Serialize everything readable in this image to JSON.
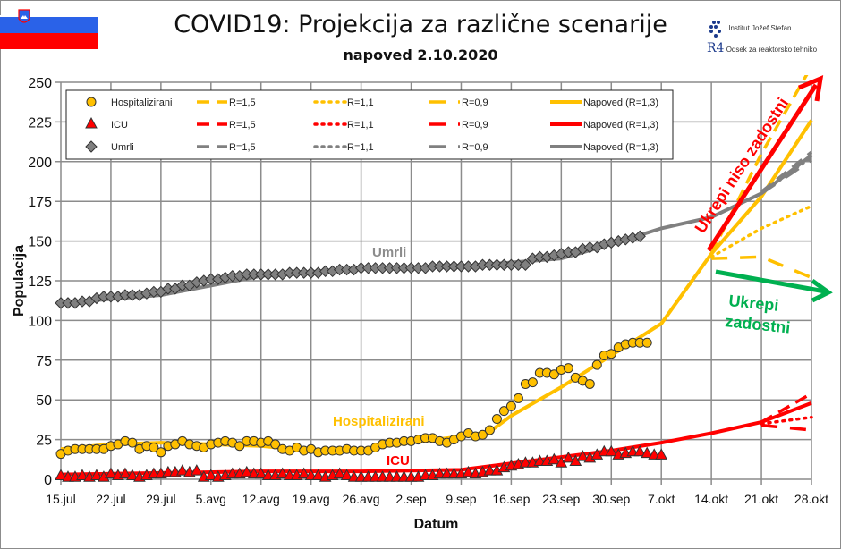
{
  "header": {
    "title": "COVID19: Projekcija za različne scenarije",
    "subtitle": "napoved 2.10.2020",
    "logo_institute": "Institut Jožef Stefan",
    "logo_department": "Odsek za reaktorsko tehniko",
    "logo_department_mark": "R4"
  },
  "annotations": {
    "umrli": "Umrli",
    "hospitalizirani": "Hospitalizirani",
    "icu": "ICU",
    "not_sufficient": "Ukrepi niso zadostni",
    "sufficient_line1": "Ukrepi",
    "sufficient_line2": "zadostni"
  },
  "colors": {
    "hospital": "#FFC000",
    "icu": "#FF0000",
    "deaths": "#808080",
    "green_arrow": "#00B050",
    "grid": "#8c8c8c"
  },
  "chart_data": {
    "type": "line",
    "title": "COVID19: Projekcija za različne scenarije",
    "subtitle": "napoved 2.10.2020",
    "xlabel": "Datum",
    "ylabel": "Populacija",
    "ylim": [
      0,
      250
    ],
    "yticks": [
      0,
      25,
      50,
      75,
      100,
      125,
      150,
      175,
      200,
      225,
      250
    ],
    "xticks": [
      "15.jul",
      "22.jul",
      "29.jul",
      "5.avg",
      "12.avg",
      "19.avg",
      "26.avg",
      "2.sep",
      "9.sep",
      "16.sep",
      "23.sep",
      "30.sep",
      "7.okt",
      "14.okt",
      "21.okt",
      "28.okt"
    ],
    "grid": true,
    "legend_position": "top-left inside",
    "legend": [
      {
        "label": "Hospitalizirani",
        "marker": "circle",
        "color": "#FFC000"
      },
      {
        "label": "ICU",
        "marker": "triangle",
        "color": "#FF0000"
      },
      {
        "label": "Umrli",
        "marker": "diamond",
        "color": "#808080"
      },
      {
        "label": "R=1,5",
        "style": "dash",
        "group": "Hospitalizirani"
      },
      {
        "label": "R=1,1",
        "style": "dot",
        "group": "Hospitalizirani"
      },
      {
        "label": "R=0,9",
        "style": "long-dash",
        "group": "Hospitalizirani"
      },
      {
        "label": "Napoved (R=1,3)",
        "style": "solid",
        "group": "Hospitalizirani"
      },
      {
        "label": "R=1,5",
        "style": "dash",
        "group": "ICU"
      },
      {
        "label": "R=1,1",
        "style": "dot",
        "group": "ICU"
      },
      {
        "label": "R=0,9",
        "style": "long-dash",
        "group": "ICU"
      },
      {
        "label": "Napoved (R=1,3)",
        "style": "solid",
        "group": "ICU"
      },
      {
        "label": "R=1,5",
        "style": "dash",
        "group": "Umrli"
      },
      {
        "label": "R=1,1",
        "style": "dot",
        "group": "Umrli"
      },
      {
        "label": "R=0,9",
        "style": "long-dash",
        "group": "Umrli"
      },
      {
        "label": "Napoved (R=1,3)",
        "style": "solid",
        "group": "Umrli"
      }
    ],
    "x_start_date": "15.jul",
    "x_unit": "days since 15.jul",
    "series": [
      {
        "name": "Hospitalizirani (observed)",
        "marker": "circle",
        "color": "#FFC000",
        "values": [
          16,
          18,
          19,
          19,
          19,
          19,
          19,
          21,
          22,
          24,
          23,
          19,
          21,
          20,
          17,
          21,
          22,
          24,
          22,
          21,
          20,
          22,
          23,
          24,
          23,
          21,
          24,
          24,
          23,
          24,
          22,
          19,
          18,
          20,
          18,
          19,
          17,
          18,
          18,
          18,
          19,
          18,
          18,
          18,
          20,
          22,
          23,
          23,
          24,
          24,
          25,
          26,
          26,
          24,
          23,
          25,
          27,
          29,
          27,
          28,
          31,
          38,
          43,
          46,
          51,
          60,
          61,
          67,
          67,
          66,
          69,
          70,
          64,
          62,
          60,
          72,
          78,
          79,
          83,
          85,
          86,
          86,
          86
        ]
      },
      {
        "name": "ICU (observed)",
        "marker": "triangle",
        "color": "#FF0000",
        "values": [
          2,
          1,
          1,
          2,
          1,
          2,
          1,
          3,
          2,
          3,
          2,
          1,
          2,
          3,
          3,
          4,
          4,
          5,
          4,
          5,
          1,
          2,
          1,
          2,
          3,
          3,
          4,
          3,
          3,
          2,
          2,
          3,
          2,
          2,
          3,
          2,
          2,
          1,
          2,
          3,
          2,
          1,
          1,
          1,
          1,
          1,
          1,
          1,
          1,
          1,
          1,
          2,
          2,
          3,
          3,
          3,
          3,
          4,
          3,
          4,
          5,
          5,
          7,
          8,
          9,
          10,
          10,
          11,
          11,
          12,
          10,
          13,
          11,
          14,
          13,
          15,
          17,
          17,
          15,
          16,
          17,
          17,
          16,
          15,
          15
        ]
      },
      {
        "name": "Umrli (observed)",
        "marker": "diamond",
        "color": "#808080",
        "values": [
          111,
          111,
          111,
          112,
          112,
          114,
          115,
          115,
          115,
          116,
          116,
          116,
          117,
          118,
          118,
          120,
          120,
          122,
          122,
          124,
          125,
          126,
          126,
          127,
          128,
          128,
          129,
          129,
          129,
          129,
          129,
          129,
          130,
          130,
          130,
          130,
          130,
          131,
          131,
          132,
          132,
          132,
          133,
          133,
          133,
          133,
          133,
          133,
          133,
          133,
          133,
          133,
          134,
          134,
          134,
          134,
          134,
          134,
          134,
          135,
          135,
          135,
          135,
          135,
          135,
          135,
          139,
          140,
          140,
          141,
          142,
          143,
          143,
          145,
          146,
          146,
          148,
          149,
          150,
          151,
          152,
          153
        ]
      },
      {
        "name": "Hospitalizirani Napoved (R=1,3)",
        "style": "solid",
        "color": "#FFC000",
        "x": [
          0,
          7,
          14,
          21,
          28,
          35,
          42,
          49,
          56,
          60,
          63,
          70,
          77,
          84,
          91,
          98,
          105
        ],
        "values": [
          19,
          22,
          23,
          22,
          21,
          18,
          19,
          23,
          27,
          30,
          40,
          58,
          78,
          98,
          142,
          178,
          226
        ]
      },
      {
        "name": "Hospitalizirani R=1,5",
        "style": "dash",
        "color": "#FFC000",
        "x": [
          91,
          98,
          105
        ],
        "values": [
          142,
          205,
          260
        ]
      },
      {
        "name": "Hospitalizirani R=1,1",
        "style": "dot",
        "color": "#FFC000",
        "x": [
          91,
          98,
          105
        ],
        "values": [
          140,
          158,
          172
        ]
      },
      {
        "name": "Hospitalizirani R=0,9",
        "style": "long-dash",
        "color": "#FFC000",
        "x": [
          91,
          98,
          105
        ],
        "values": [
          139,
          140,
          127
        ]
      },
      {
        "name": "ICU Napoved (R=1,3)",
        "style": "solid",
        "color": "#FF0000",
        "x": [
          0,
          14,
          28,
          42,
          56,
          63,
          70,
          77,
          84,
          91,
          98,
          105
        ],
        "values": [
          3,
          4,
          5,
          5,
          6,
          10,
          14,
          18,
          23,
          29,
          36,
          48
        ]
      },
      {
        "name": "ICU R=1,5",
        "style": "dash",
        "color": "#FF0000",
        "x": [
          98,
          105
        ],
        "values": [
          36,
          54
        ]
      },
      {
        "name": "ICU R=1,1",
        "style": "dot",
        "color": "#FF0000",
        "x": [
          98,
          105
        ],
        "values": [
          35,
          39
        ]
      },
      {
        "name": "ICU R=0,9",
        "style": "long-dash",
        "color": "#FF0000",
        "x": [
          98,
          105
        ],
        "values": [
          34,
          31
        ]
      },
      {
        "name": "Umrli Napoved (R=1,3)",
        "style": "solid",
        "color": "#808080",
        "x": [
          0,
          14,
          28,
          42,
          56,
          70,
          77,
          84,
          91,
          98,
          105
        ],
        "values": [
          111,
          116,
          128,
          133,
          134,
          139,
          148,
          158,
          165,
          180,
          204
        ]
      },
      {
        "name": "Umrli R=1,5",
        "style": "dash",
        "color": "#808080",
        "x": [
          98,
          105
        ],
        "values": [
          181,
          206
        ]
      },
      {
        "name": "Umrli R=1,1",
        "style": "dot",
        "color": "#808080",
        "x": [
          98,
          105
        ],
        "values": [
          180,
          203
        ]
      },
      {
        "name": "Umrli R=0,9",
        "style": "long-dash",
        "color": "#808080",
        "x": [
          98,
          105
        ],
        "values": [
          180,
          201
        ]
      }
    ]
  }
}
